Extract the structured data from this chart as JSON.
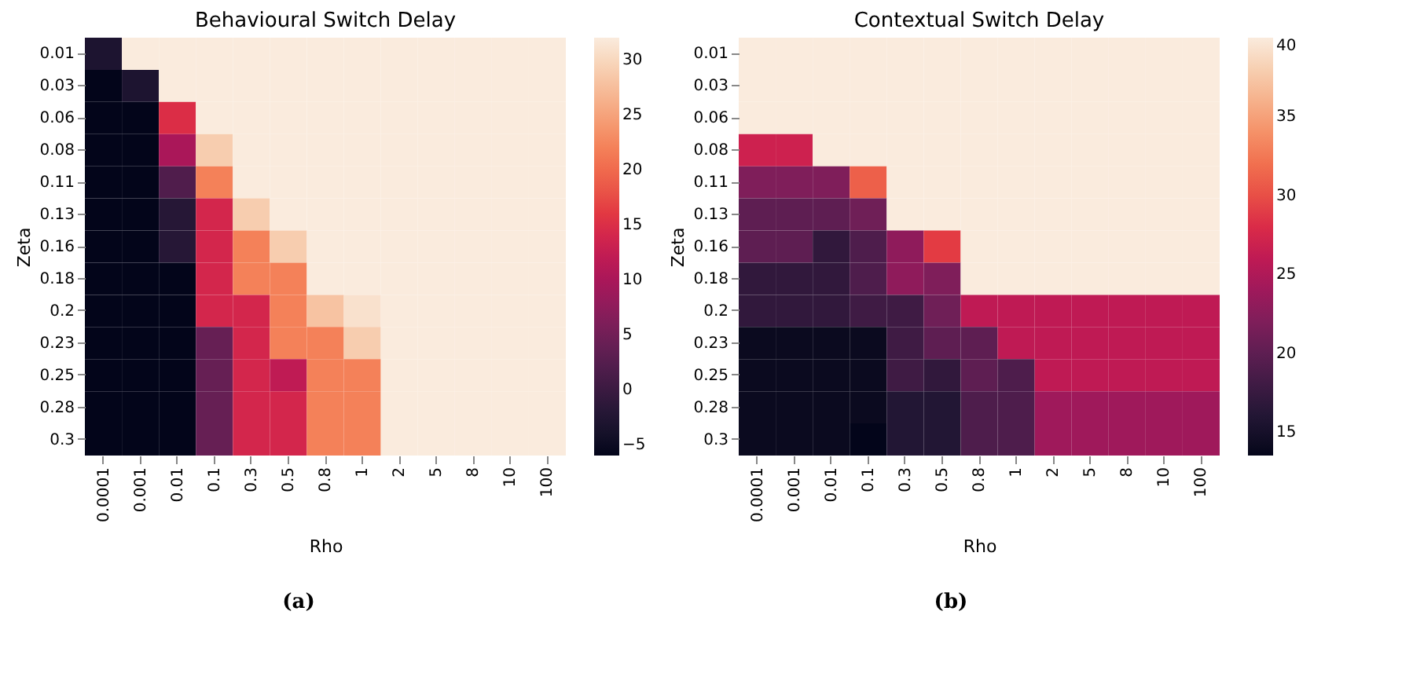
{
  "chart_data": [
    {
      "type": "heatmap",
      "title": "Behavioural Switch Delay",
      "xlabel": "Rho",
      "ylabel": "Zeta",
      "annotations": [
        "(a)"
      ],
      "categories": [
        "0.0001",
        "0.001",
        "0.01",
        "0.1",
        "0.3",
        "0.5",
        "0.8",
        "1",
        "2",
        "5",
        "8",
        "10",
        "100"
      ],
      "y_categories": [
        "0.01",
        "0.03",
        "0.06",
        "0.08",
        "0.11",
        "0.13",
        "0.16",
        "0.18",
        "0.2",
        "0.23",
        "0.25",
        "0.28",
        "0.3"
      ],
      "cells": [
        [
          -3,
          32,
          32,
          32,
          32,
          32,
          32,
          32,
          32,
          32,
          32,
          32,
          32
        ],
        [
          -6,
          -3,
          32,
          32,
          32,
          32,
          32,
          32,
          32,
          32,
          32,
          32,
          32
        ],
        [
          -6,
          -6,
          15,
          32,
          32,
          32,
          32,
          32,
          32,
          32,
          32,
          32,
          32
        ],
        [
          -6,
          -6,
          10,
          29,
          32,
          32,
          32,
          32,
          32,
          32,
          32,
          32,
          32
        ],
        [
          -6,
          -6,
          2,
          22,
          32,
          32,
          32,
          32,
          32,
          32,
          32,
          32,
          32
        ],
        [
          -6,
          -6,
          -2,
          14,
          29,
          32,
          32,
          32,
          32,
          32,
          32,
          32,
          32
        ],
        [
          -6,
          -6,
          -2,
          14,
          22,
          29,
          32,
          32,
          32,
          32,
          32,
          32,
          32
        ],
        [
          -6,
          -6,
          -6,
          14,
          22,
          22,
          32,
          32,
          32,
          32,
          32,
          32,
          32
        ],
        [
          -6,
          -6,
          -6,
          14,
          14,
          22,
          28,
          31,
          32,
          32,
          32,
          32,
          32
        ],
        [
          -6,
          -6,
          -6,
          4,
          14,
          22,
          22,
          29,
          32,
          32,
          32,
          32,
          32
        ],
        [
          -6,
          -6,
          -6,
          4,
          14,
          12,
          22,
          22,
          32,
          32,
          32,
          32,
          32
        ],
        [
          -6,
          -6,
          -6,
          4,
          14,
          14,
          22,
          22,
          32,
          32,
          32,
          32,
          32
        ],
        [
          -6,
          -6,
          -6,
          4,
          14,
          14,
          22,
          22,
          32,
          32,
          32,
          32,
          32
        ]
      ],
      "clim": [
        -6,
        32
      ],
      "cticks": [
        -5,
        0,
        5,
        10,
        15,
        20,
        25,
        30
      ]
    },
    {
      "type": "heatmap",
      "title": "Contextual Switch Delay",
      "xlabel": "Rho",
      "ylabel": "Zeta",
      "annotations": [
        "(b)"
      ],
      "categories": [
        "0.0001",
        "0.001",
        "0.01",
        "0.1",
        "0.3",
        "0.5",
        "0.8",
        "1",
        "2",
        "5",
        "8",
        "10",
        "100"
      ],
      "y_categories": [
        "0.01",
        "0.03",
        "0.06",
        "0.08",
        "0.11",
        "0.13",
        "0.16",
        "0.18",
        "0.2",
        "0.23",
        "0.25",
        "0.28",
        "0.3"
      ],
      "cells": [
        [
          40,
          40,
          40,
          40,
          40,
          40,
          40,
          40,
          40,
          40,
          40,
          40,
          40
        ],
        [
          40,
          40,
          40,
          40,
          40,
          40,
          40,
          40,
          40,
          40,
          40,
          40,
          40
        ],
        [
          40,
          40,
          40,
          40,
          40,
          40,
          40,
          40,
          40,
          40,
          40,
          40,
          40
        ],
        [
          27,
          27,
          40,
          40,
          40,
          40,
          40,
          40,
          40,
          40,
          40,
          40,
          40
        ],
        [
          22,
          22,
          22,
          31,
          40,
          40,
          40,
          40,
          40,
          40,
          40,
          40,
          40
        ],
        [
          20,
          20,
          20,
          21,
          40,
          40,
          40,
          40,
          40,
          40,
          40,
          40,
          40
        ],
        [
          20,
          20,
          17,
          19,
          23,
          29,
          40,
          40,
          40,
          40,
          40,
          40,
          40
        ],
        [
          17,
          17,
          17,
          19,
          23,
          22,
          40,
          40,
          40,
          40,
          40,
          40,
          40
        ],
        [
          17,
          17,
          17,
          18,
          18,
          21,
          26,
          26,
          26,
          26,
          26,
          26,
          26
        ],
        [
          14,
          14,
          14,
          14,
          18,
          20,
          20,
          26,
          26,
          26,
          26,
          26,
          26
        ],
        [
          14,
          14,
          14,
          14,
          18,
          17,
          20,
          19,
          26,
          26,
          26,
          26,
          26
        ],
        [
          14,
          14,
          14,
          14,
          16,
          16,
          19,
          19,
          24,
          24,
          24,
          24,
          24
        ],
        [
          14,
          14,
          14,
          13.5,
          16,
          16,
          19,
          19,
          24,
          24,
          24,
          24,
          24
        ]
      ],
      "clim": [
        13.5,
        40
      ],
      "cticks": [
        15,
        20,
        25,
        30,
        35,
        40
      ]
    }
  ]
}
